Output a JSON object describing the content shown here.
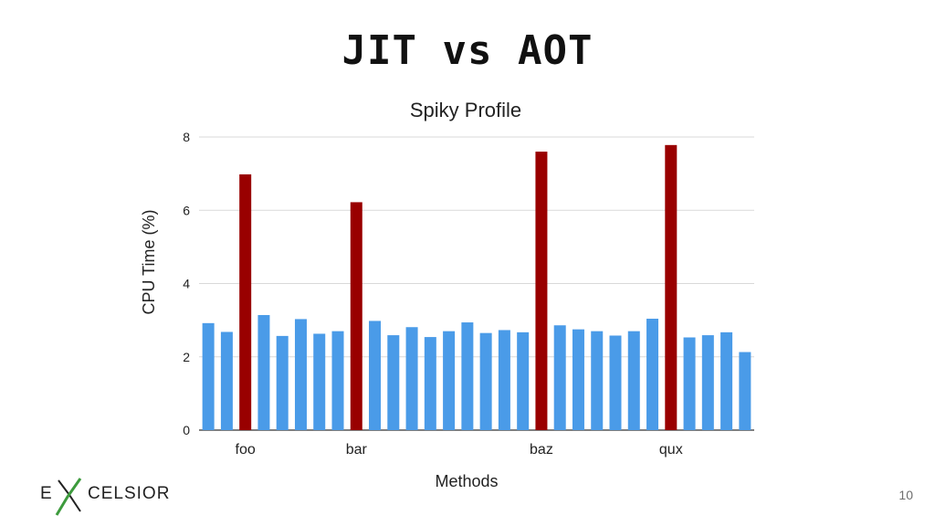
{
  "slide": {
    "title": "JIT vs AOT",
    "page_number": "10",
    "logo": {
      "first_letter": "E",
      "rest": "CELSIOR",
      "x_glyph": "X"
    }
  },
  "chart_data": {
    "type": "bar",
    "title": "Spiky Profile",
    "xlabel": "Methods",
    "ylabel": "CPU Time (%)",
    "ylim": [
      0,
      8
    ],
    "yticks": [
      0,
      2,
      4,
      6,
      8
    ],
    "grid": true,
    "categories": [
      "",
      "",
      "foo",
      "",
      "",
      "",
      "",
      "",
      "bar",
      "",
      "",
      "",
      "",
      "",
      "",
      "",
      "",
      "",
      "baz",
      "",
      "",
      "",
      "",
      "",
      "",
      "qux",
      "",
      "",
      "",
      ""
    ],
    "values": [
      2.92,
      2.68,
      6.98,
      3.14,
      2.57,
      3.03,
      2.63,
      2.7,
      6.22,
      2.98,
      2.59,
      2.81,
      2.54,
      2.7,
      2.94,
      2.65,
      2.73,
      2.67,
      7.6,
      2.86,
      2.75,
      2.7,
      2.58,
      2.7,
      3.04,
      7.78,
      2.53,
      2.59,
      2.67,
      2.13
    ],
    "highlight": [
      false,
      false,
      true,
      false,
      false,
      false,
      false,
      false,
      true,
      false,
      false,
      false,
      false,
      false,
      false,
      false,
      false,
      false,
      true,
      false,
      false,
      false,
      false,
      false,
      false,
      true,
      false,
      false,
      false,
      false
    ],
    "colors": {
      "normal": "#4a9be8",
      "spike": "#990000",
      "grid": "#d9d9d9",
      "axis": "#333333"
    }
  }
}
